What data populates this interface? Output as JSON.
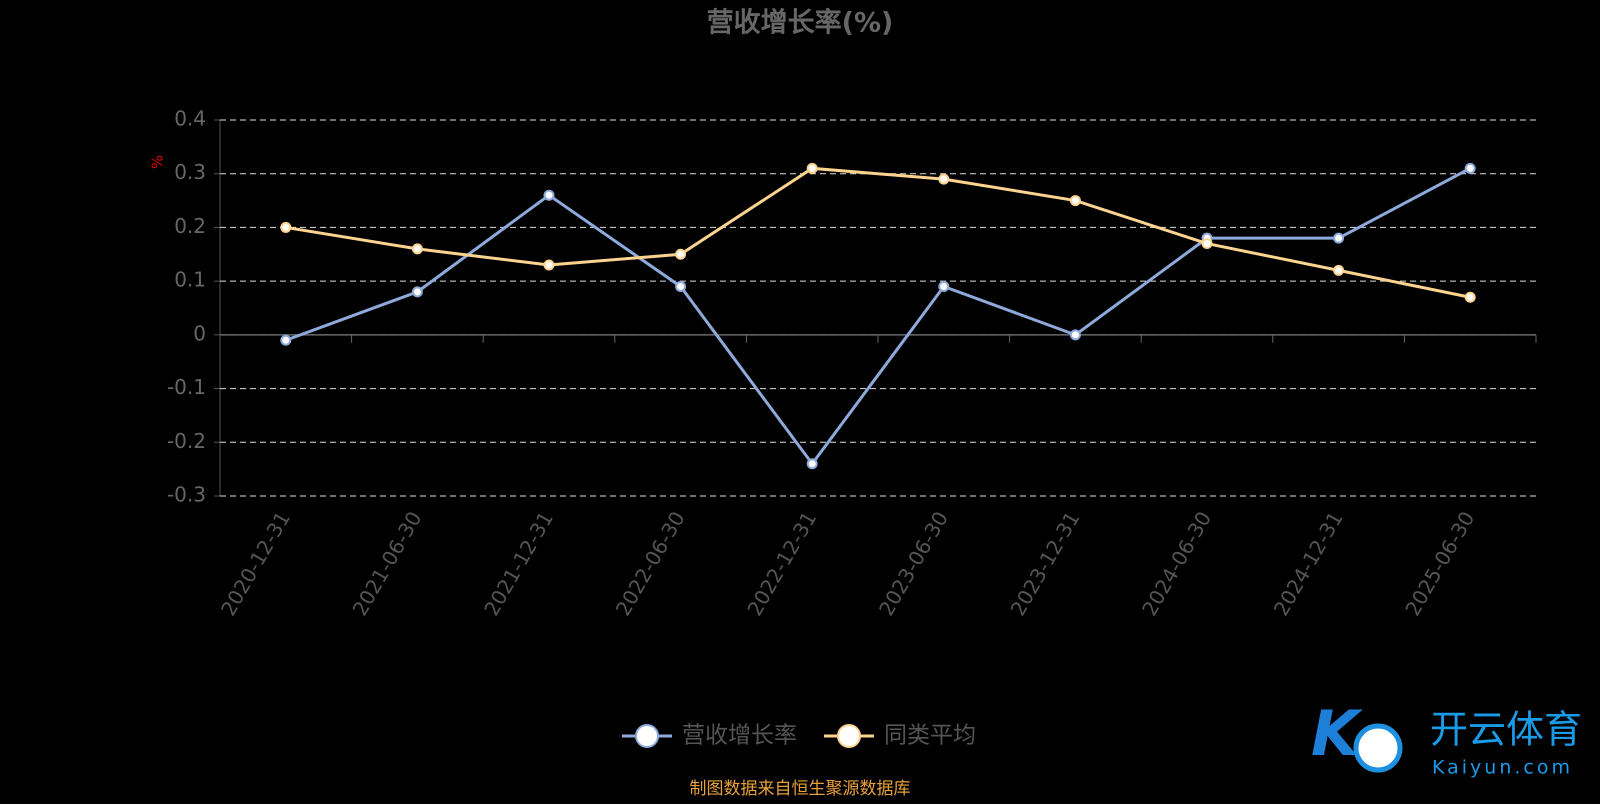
{
  "chart_data": {
    "type": "line",
    "title": "营收增长率(%)",
    "y_label": "%",
    "categories": [
      "2020-12-31",
      "2021-06-30",
      "2021-12-31",
      "2022-06-30",
      "2022-12-31",
      "2023-06-30",
      "2023-12-31",
      "2024-06-30",
      "2024-12-31",
      "2025-06-30"
    ],
    "series": [
      {
        "name": "营收增长率",
        "color": "#8eaadb",
        "values": [
          -0.01,
          0.08,
          0.26,
          0.09,
          -0.24,
          0.09,
          0.0,
          0.18,
          0.18,
          0.31
        ]
      },
      {
        "name": "同类平均",
        "color": "#fcd38f",
        "values": [
          0.2,
          0.16,
          0.13,
          0.15,
          0.31,
          0.29,
          0.25,
          0.17,
          0.12,
          0.07
        ]
      }
    ],
    "ylim": [
      -0.3,
      0.4
    ],
    "yticks": [
      -0.3,
      -0.2,
      -0.1,
      0,
      0.1,
      0.2,
      0.3,
      0.4
    ],
    "grid": true,
    "legend": "bottom",
    "source": "制图数据来自恒生聚源数据库"
  },
  "watermark": {
    "brand": "开云体育",
    "site": "Kaiyun.com"
  }
}
